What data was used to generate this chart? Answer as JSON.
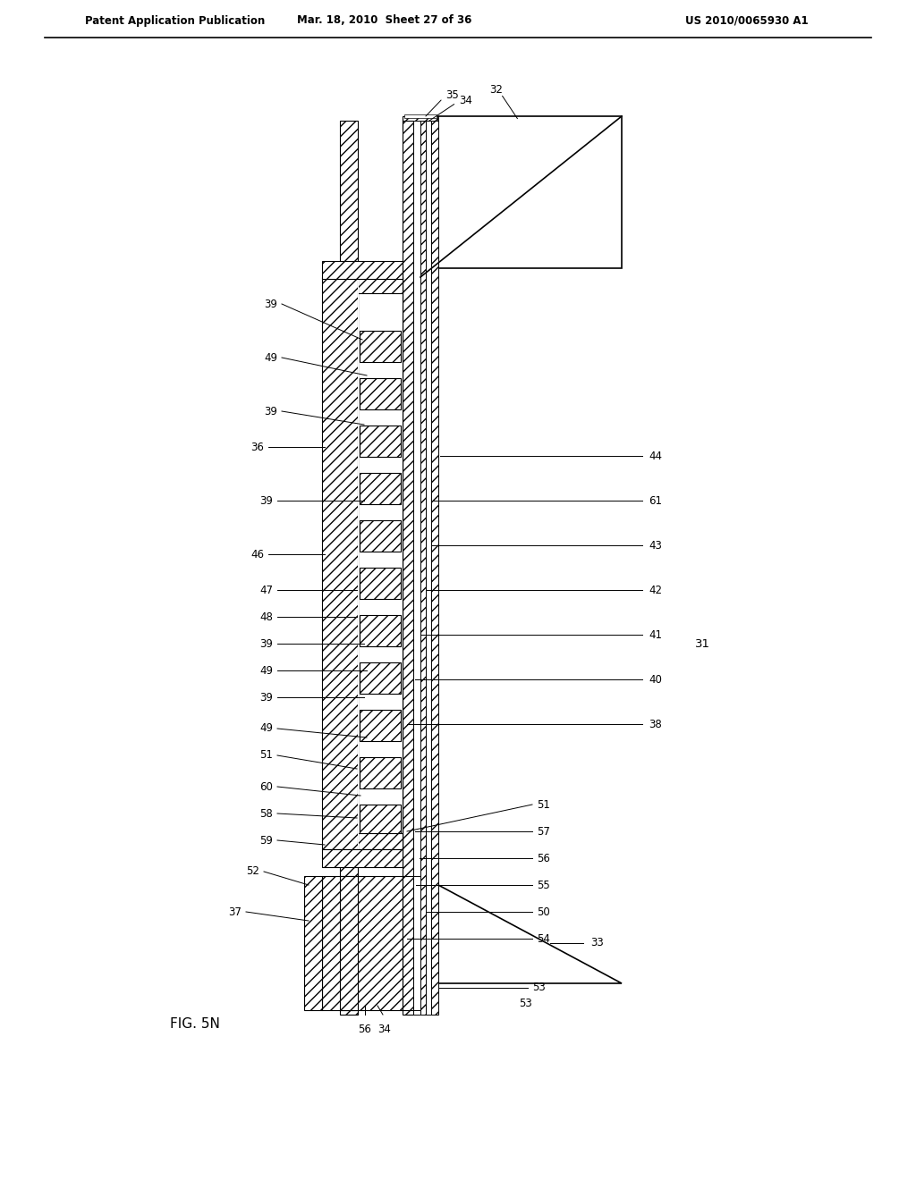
{
  "title_left": "Patent Application Publication",
  "title_mid": "Mar. 18, 2010  Sheet 27 of 36",
  "title_right": "US 2010/0065930 A1",
  "fig_label": "FIG. 5N",
  "background": "#ffffff",
  "line_color": "#000000",
  "hatch_color": "#000000",
  "label_31": "31",
  "label_32": "32",
  "label_33": "33",
  "label_34_top": "34",
  "label_35": "35",
  "label_36": "36",
  "label_37": "37",
  "label_38": "38",
  "label_39": "39",
  "label_40": "40",
  "label_41": "41",
  "label_42": "42",
  "label_43": "43",
  "label_44": "44",
  "label_46": "46",
  "label_47": "47",
  "label_48": "48",
  "label_49": "49",
  "label_50": "50",
  "label_51": "51",
  "label_52": "52",
  "label_53": "53",
  "label_54": "54",
  "label_55": "55",
  "label_56": "56",
  "label_57": "57",
  "label_58": "58",
  "label_59": "59",
  "label_60": "60",
  "label_61": "61",
  "label_34_bot": "34",
  "label_56_bot": "56"
}
